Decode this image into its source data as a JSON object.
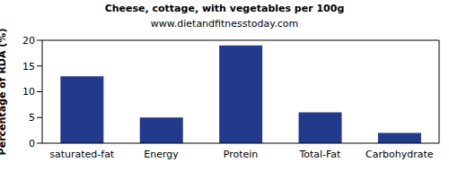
{
  "chart_data": {
    "type": "bar",
    "title": "Cheese, cottage, with vegetables per 100g",
    "subtitle": "www.dietandfitnesstoday.com",
    "y_label": "Percentage of RDA (%)",
    "categories": [
      "saturated-fat",
      "Energy",
      "Protein",
      "Total-Fat",
      "Carbohydrate"
    ],
    "values": [
      13,
      5,
      19,
      6,
      2
    ],
    "color": "#233a8a",
    "ylim": [
      0,
      20
    ],
    "yticks": [
      0,
      5,
      10,
      15,
      20
    ],
    "grid": false
  }
}
